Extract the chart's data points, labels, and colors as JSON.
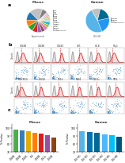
{
  "panel_a": {
    "mouse_title": "Mouse",
    "mouse_subtitle": "Experimental",
    "mouse_slices": [
      18,
      12,
      9,
      8,
      7,
      6,
      5,
      5,
      4,
      4,
      3,
      3,
      3,
      2,
      2,
      2,
      7
    ],
    "mouse_colors": [
      "#c0c0c0",
      "#1f77b4",
      "#ff7f0e",
      "#2ca02c",
      "#d62728",
      "#9467bd",
      "#8c564b",
      "#e377c2",
      "#bcbd22",
      "#17becf",
      "#aec7e8",
      "#ffbb78",
      "#98df8a",
      "#ff9896",
      "#c5b0d5",
      "#f7b6d2",
      "#7f7f7f"
    ],
    "mouse_legend_colors": [
      "#1f77b4",
      "#ff7f0e",
      "#2ca02c",
      "#d62728",
      "#9467bd",
      "#8c564b",
      "#e377c2",
      "#bcbd22",
      "#17becf",
      "#aec7e8",
      "#ffbb78",
      "#98df8a",
      "#ff9896",
      "#c5b0d5",
      "#f7b6d2",
      "#c0c0c0"
    ],
    "mouse_legend_labels": [
      "CD3",
      "CD4",
      "CD8",
      "CD19",
      "CD20",
      "CD56",
      "CD14",
      "CD16",
      "CD25",
      "CD45RA",
      "CD45RO",
      "CD127",
      "CD197",
      "HLA-DR",
      "CD38",
      "Negative Control"
    ],
    "human_title": "Human",
    "human_subtitle": "CD5+B1",
    "human_slices": [
      48,
      22,
      18,
      12
    ],
    "human_colors": [
      "#56b4e9",
      "#2196f3",
      "#006994",
      "#c0c0c0"
    ],
    "human_labels": [
      "CD5+B1",
      "CD5+B2",
      "CD5+",
      "Negative Control"
    ]
  },
  "panel_b": {
    "titles_row1": [
      "CD44B",
      "CD44B",
      "CD44X",
      "CD5",
      "HZ-B",
      "Thy1"
    ],
    "titles_row2": [
      "MDL-M10",
      "CD200",
      "CD16",
      "NK84",
      "CD11c",
      "TP51"
    ]
  },
  "panel_c": {
    "mouse_title": "Mouse",
    "human_title": "Human",
    "mouse_categories": [
      "CD44B",
      "CD44B",
      "CD44X",
      "CD5",
      "CD44B",
      "CD11c",
      "CD34B"
    ],
    "mouse_values": [
      98,
      97,
      96,
      94,
      93,
      91,
      88
    ],
    "mouse_colors": [
      "#4daf4a",
      "#377eb8",
      "#e6ab02",
      "#ff7f00",
      "#e41a1c",
      "#984ea3",
      "#8b4513"
    ],
    "human_categories": [
      "CD5+B1",
      "CD5+B2",
      "CD5+B3",
      "CD5+B4",
      "CD5+B5",
      "CD5+B6"
    ],
    "human_values": [
      96,
      95,
      94,
      92,
      91,
      89
    ],
    "human_colors": [
      "#56b4e9",
      "#0072b2",
      "#006994",
      "#4db8ff",
      "#00bfff",
      "#005580"
    ],
    "mouse_ylim": [
      70,
      105
    ],
    "human_ylim": [
      70,
      105
    ],
    "mouse_yticks": [
      70,
      80,
      90,
      100
    ],
    "human_yticks": [
      70,
      80,
      90,
      100
    ]
  },
  "label_a": "a",
  "label_b": "b",
  "label_c": "c",
  "bg": "#ffffff"
}
